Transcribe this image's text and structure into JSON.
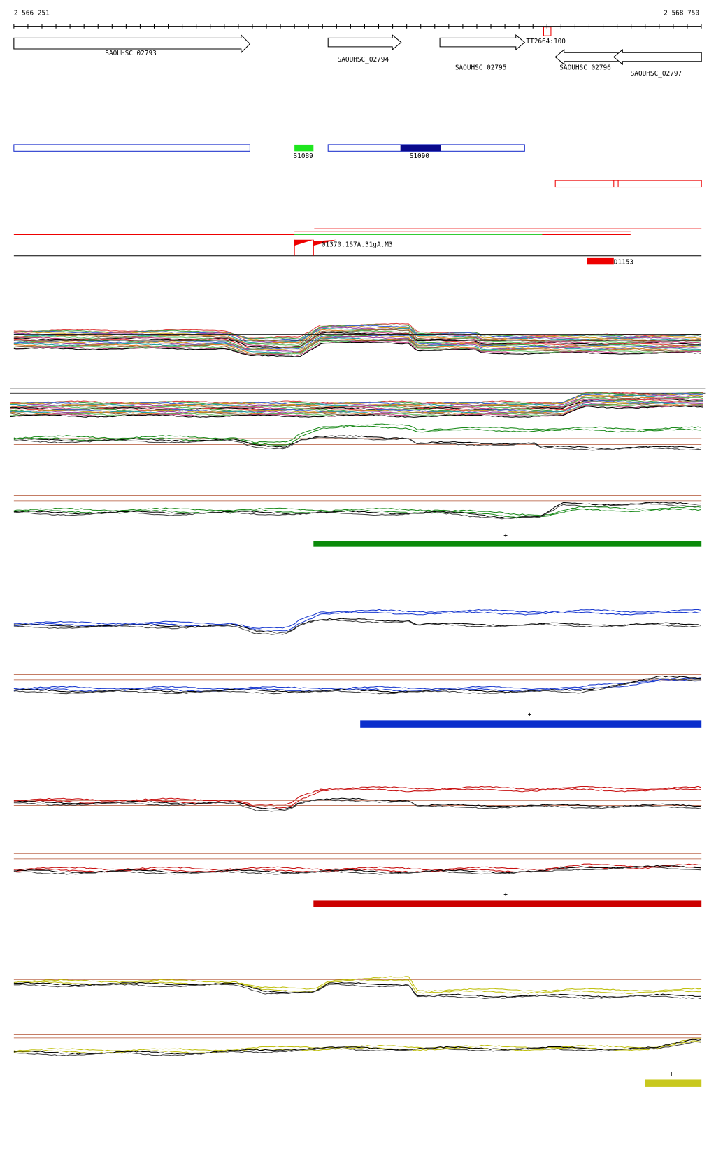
{
  "ruler": {
    "start": "2 566 251",
    "end": "2 568 750"
  },
  "genes": [
    "SAOUHSC_02793",
    "SAOUHSC_02794",
    "SAOUHSC_02795",
    "SAOUHSC_02796",
    "SAOUHSC_02797"
  ],
  "terminator": "TT2664:100",
  "features": {
    "s1089": "S1089",
    "s1090": "S1090",
    "overlap": "01370.1S7A.31gA.M3",
    "d1153": "D1153"
  },
  "markers": [
    "+",
    "+",
    "+",
    "+"
  ]
}
